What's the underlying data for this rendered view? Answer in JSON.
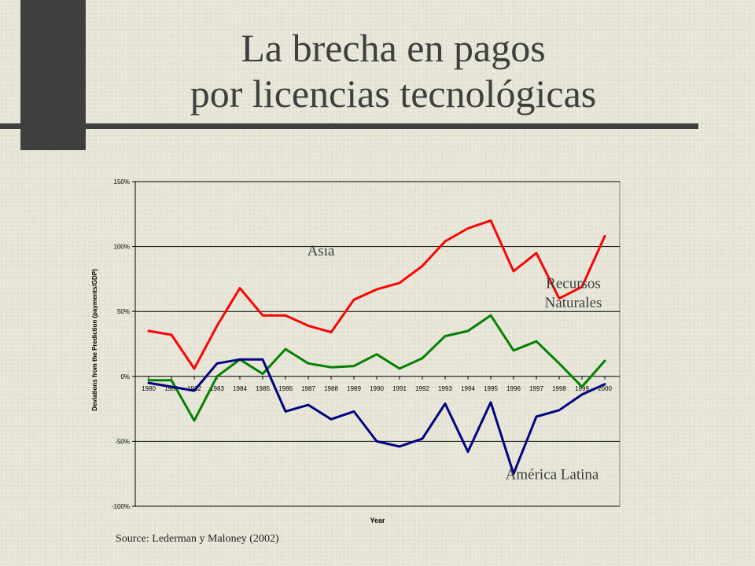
{
  "slide": {
    "title_line1": "La brecha en pagos",
    "title_line2": "por licencias tecnológicas",
    "source": "Source: Lederman y Maloney (2002)"
  },
  "chart_data": {
    "type": "line",
    "xlabel": "Year",
    "ylabel": "Deviations from the Prediction (payments/GDP)",
    "ylim": [
      -100,
      150
    ],
    "y_ticks": [
      150,
      100,
      50,
      0,
      -50,
      -100
    ],
    "y_tick_labels": [
      "150%",
      "100%",
      "50%",
      "0%",
      "-50%",
      "-100%"
    ],
    "grid": true,
    "legend": "none",
    "categories": [
      "1980",
      "1981",
      "1982",
      "1983",
      "1984",
      "1985",
      "1986",
      "1987",
      "1988",
      "1989",
      "1990",
      "1991",
      "1992",
      "1993",
      "1994",
      "1995",
      "1996",
      "1997",
      "1998",
      "1999",
      "2000"
    ],
    "series": [
      {
        "name": "Asia",
        "color": "#ff0000",
        "values": [
          35,
          32,
          6,
          39,
          68,
          47,
          47,
          39,
          34,
          59,
          67,
          72,
          85,
          104,
          114,
          120,
          81,
          95,
          60,
          69,
          108
        ]
      },
      {
        "name": "Recursos Naturales",
        "color": "#008000",
        "values": [
          -3,
          -3,
          -34,
          0,
          13,
          2,
          21,
          10,
          7,
          8,
          17,
          6,
          14,
          31,
          35,
          47,
          20,
          27,
          10,
          -8,
          12
        ]
      },
      {
        "name": "América Latina",
        "color": "#000080",
        "values": [
          -5,
          -8,
          -11,
          10,
          13,
          13,
          -27,
          -22,
          -33,
          -27,
          -50,
          -54,
          -48,
          -21,
          -58,
          -20,
          -75,
          -31,
          -26,
          -14,
          -6
        ]
      }
    ],
    "annotations": [
      {
        "text": "Asia",
        "series": "Asia"
      },
      {
        "text": "Recursos",
        "series": "Recursos Naturales"
      },
      {
        "text": "Naturales",
        "series": "Recursos Naturales"
      },
      {
        "text": "América Latina",
        "series": "América Latina"
      }
    ]
  }
}
